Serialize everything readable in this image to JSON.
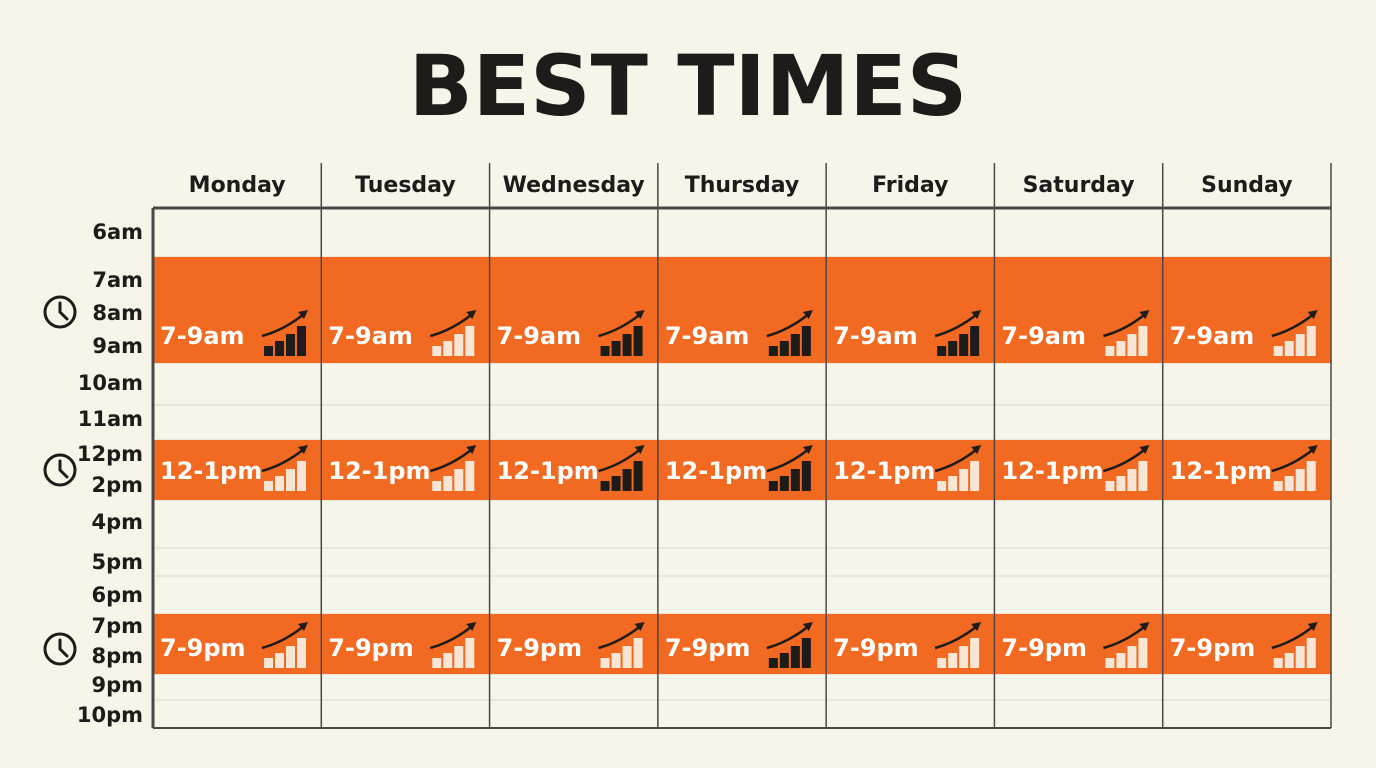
{
  "title": "BEST TIMES",
  "days": [
    "Monday",
    "Tuesday",
    "Wednesday",
    "Thursday",
    "Friday",
    "Saturday",
    "Sunday"
  ],
  "times": [
    "6am",
    "7am",
    "8am",
    "9am",
    "10am",
    "11am",
    "12pm",
    "2pm",
    "4pm",
    "5pm",
    "6pm",
    "7pm",
    "8pm",
    "9pm",
    "10pm"
  ],
  "slots": [
    {
      "cells": [
        {
          "label": "7-9am",
          "icon": "dark"
        },
        {
          "label": "7-9am",
          "icon": "light"
        },
        {
          "label": "7-9am",
          "icon": "dark"
        },
        {
          "label": "7-9am",
          "icon": "dark"
        },
        {
          "label": "7-9am",
          "icon": "dark"
        },
        {
          "label": "7-9am",
          "icon": "light"
        },
        {
          "label": "7-9am",
          "icon": "light"
        }
      ]
    },
    {
      "cells": [
        {
          "label": "12-1pm",
          "icon": "light"
        },
        {
          "label": "12-1pm",
          "icon": "light"
        },
        {
          "label": "12-1pm",
          "icon": "dark"
        },
        {
          "label": "12-1pm",
          "icon": "dark"
        },
        {
          "label": "12-1pm",
          "icon": "light"
        },
        {
          "label": "12-1pm",
          "icon": "light"
        },
        {
          "label": "12-1pm",
          "icon": "light"
        }
      ]
    },
    {
      "cells": [
        {
          "label": "7-9pm",
          "icon": "light"
        },
        {
          "label": "7-9pm",
          "icon": "light"
        },
        {
          "label": "7-9pm",
          "icon": "light"
        },
        {
          "label": "7-9pm",
          "icon": "dark"
        },
        {
          "label": "7-9pm",
          "icon": "light"
        },
        {
          "label": "7-9pm",
          "icon": "light"
        },
        {
          "label": "7-9pm",
          "icon": "light"
        }
      ]
    }
  ]
}
